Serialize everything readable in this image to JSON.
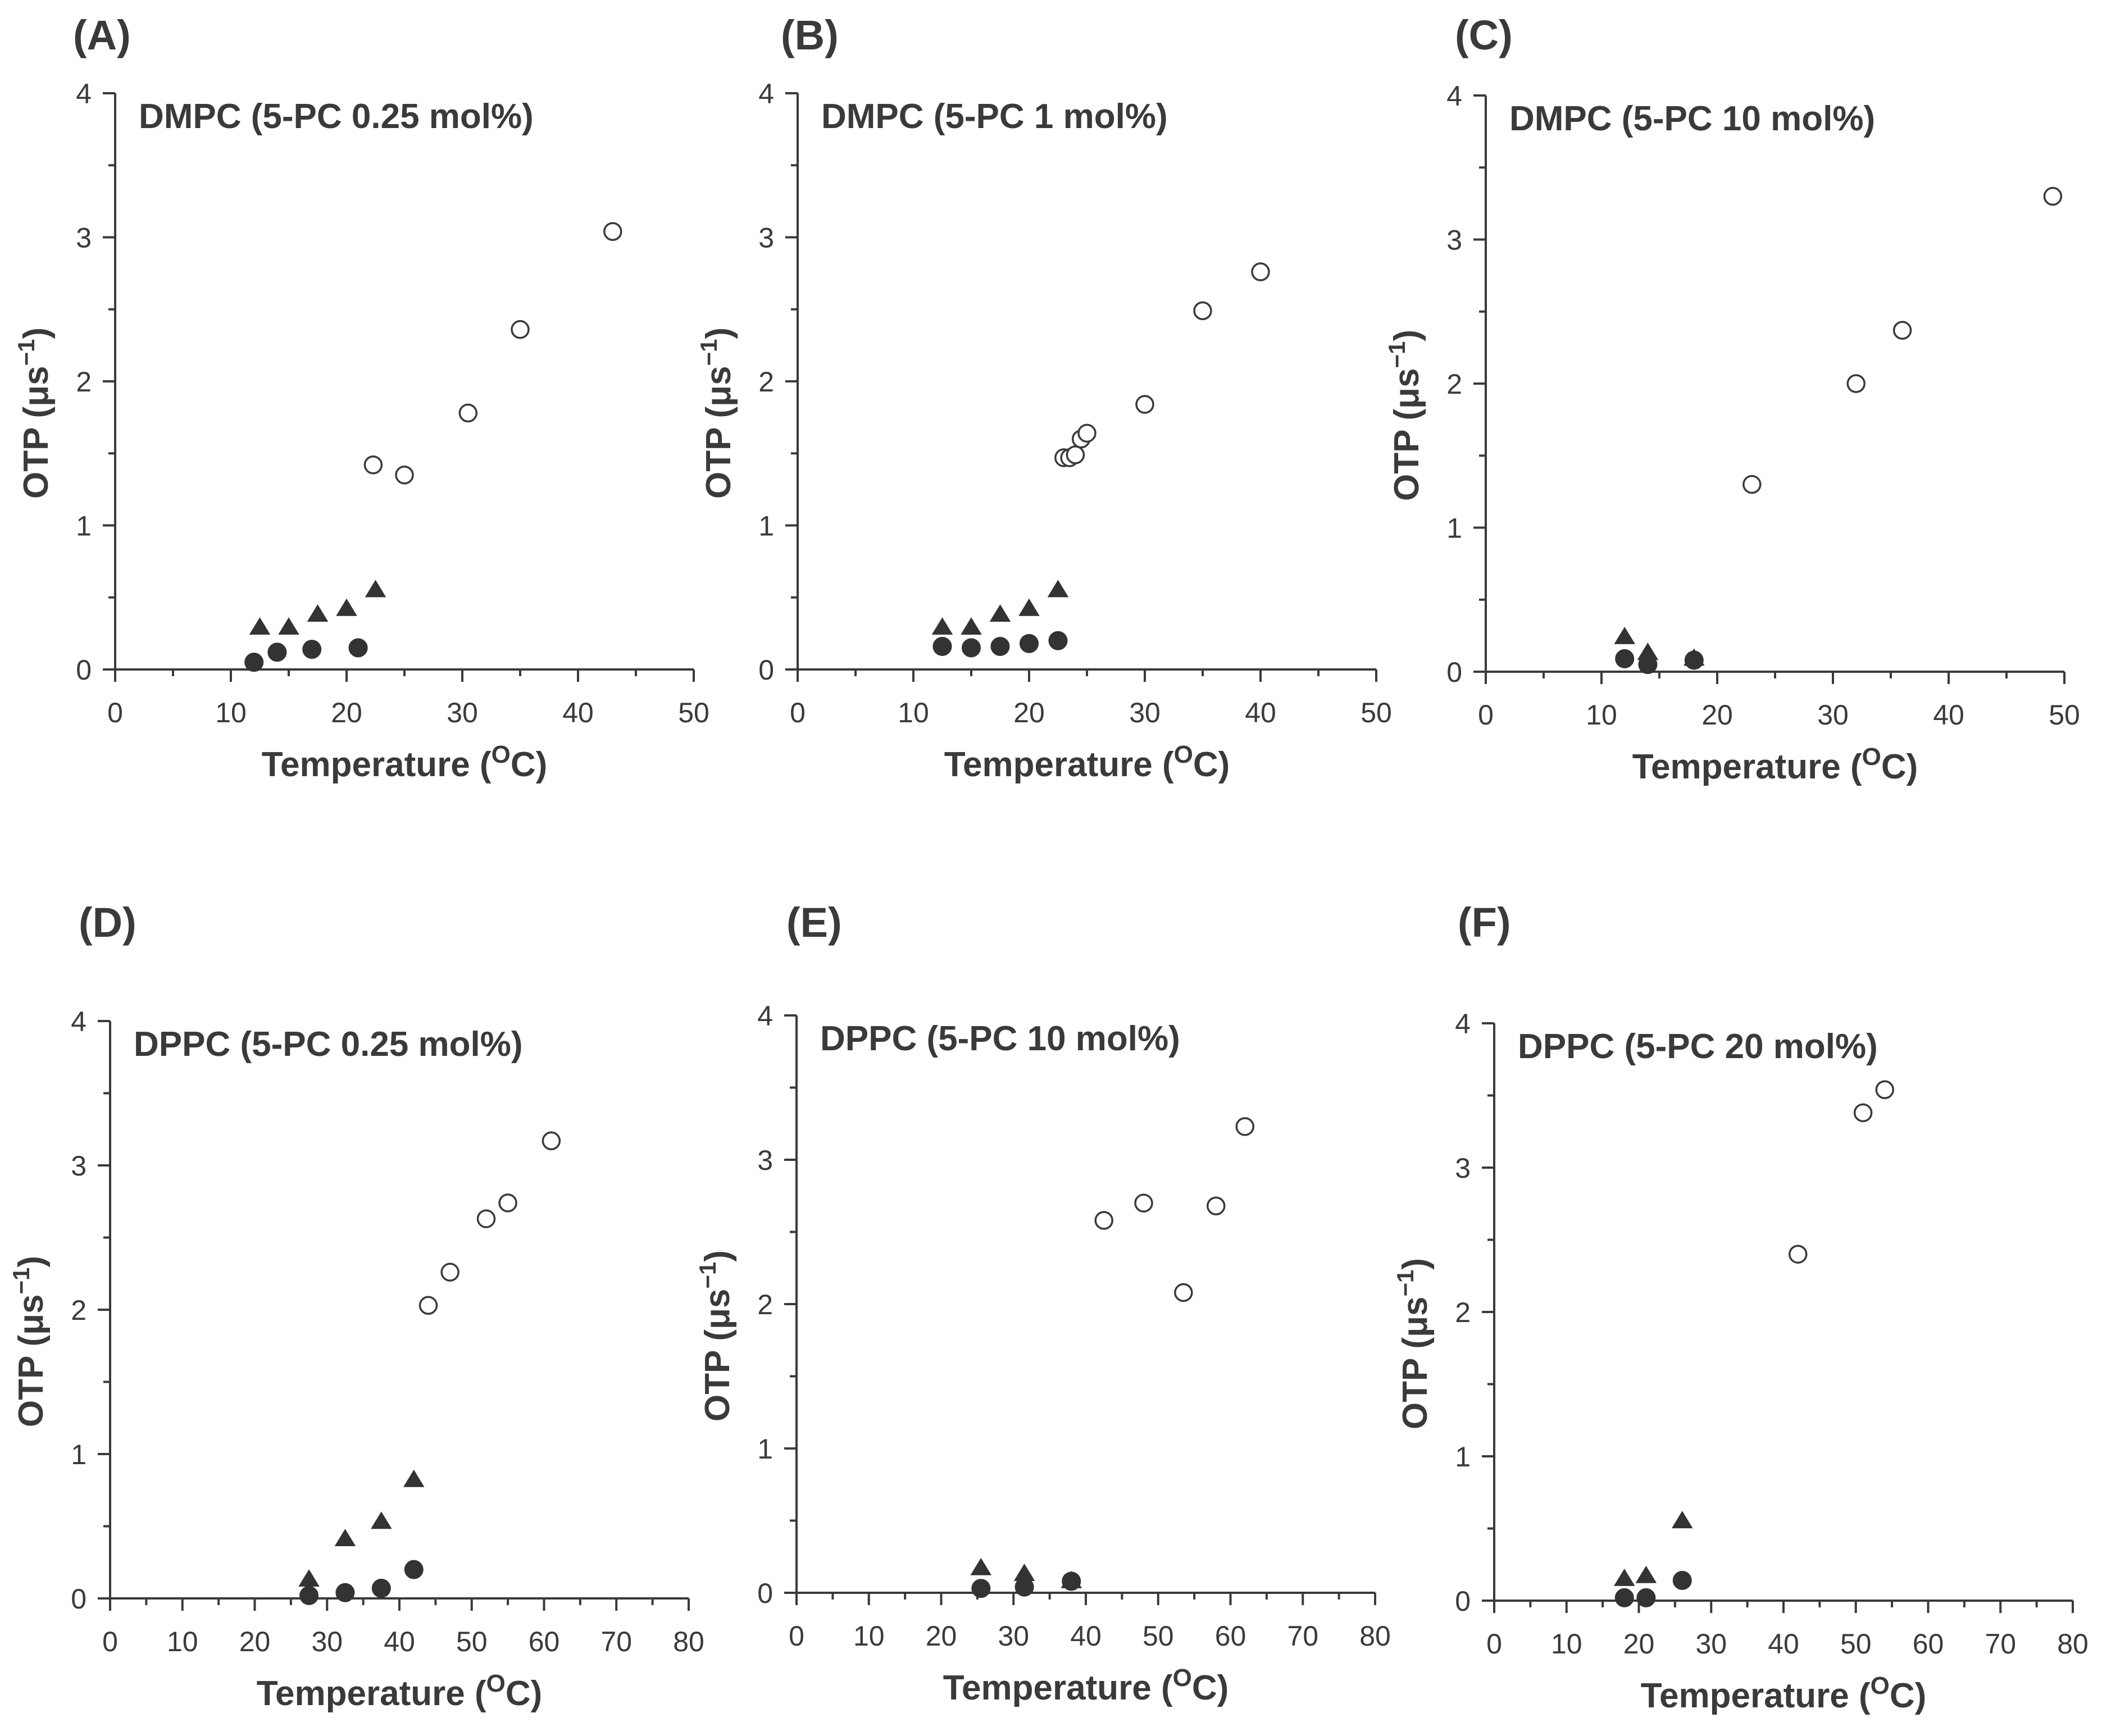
{
  "chart_data": [
    {
      "type": "scatter",
      "panel_label": "(A)",
      "title": "DMPC (5-PC 0.25 mol%)",
      "xlabel": "Temperature (",
      "xlabel_sup": "O",
      "xlabel_tail": "C)",
      "ylabel": "OTP  (μs",
      "ylabel_sup": "−1",
      "ylabel_tail": ")",
      "xlim": [
        0,
        50
      ],
      "ylim": [
        0,
        4
      ],
      "xticks": [
        "0",
        "10",
        "20",
        "30",
        "40",
        "50"
      ],
      "yticks": [
        "0",
        "1",
        "2",
        "3",
        "4"
      ],
      "grid": false,
      "series": [
        {
          "marker": "open-circle",
          "points": [
            [
              22.3,
              1.42
            ],
            [
              25,
              1.35
            ],
            [
              30.5,
              1.78
            ],
            [
              35,
              2.36
            ],
            [
              43,
              3.04
            ]
          ]
        },
        {
          "marker": "filled-triangle",
          "points": [
            [
              12.5,
              0.3
            ],
            [
              15,
              0.3
            ],
            [
              17.5,
              0.39
            ],
            [
              20,
              0.43
            ],
            [
              22.5,
              0.56
            ]
          ]
        },
        {
          "marker": "filled-circle",
          "points": [
            [
              12,
              0.05
            ],
            [
              14,
              0.12
            ],
            [
              17,
              0.14
            ],
            [
              21,
              0.15
            ]
          ]
        }
      ]
    },
    {
      "type": "scatter",
      "panel_label": "(B)",
      "title": "DMPC (5-PC 1 mol%)",
      "xlabel": "Temperature (",
      "xlabel_sup": "O",
      "xlabel_tail": "C)",
      "ylabel": "OTP  (μs",
      "ylabel_sup": "−1",
      "ylabel_tail": ")",
      "xlim": [
        0,
        50
      ],
      "ylim": [
        0,
        4
      ],
      "xticks": [
        "0",
        "10",
        "20",
        "30",
        "40",
        "50"
      ],
      "yticks": [
        "0",
        "1",
        "2",
        "3",
        "4"
      ],
      "grid": false,
      "series": [
        {
          "marker": "open-circle",
          "points": [
            [
              23,
              1.47
            ],
            [
              23.5,
              1.47
            ],
            [
              24,
              1.49
            ],
            [
              24.5,
              1.6
            ],
            [
              25,
              1.64
            ],
            [
              30,
              1.84
            ],
            [
              35,
              2.49
            ],
            [
              40,
              2.76
            ]
          ]
        },
        {
          "marker": "filled-triangle",
          "points": [
            [
              12.5,
              0.3
            ],
            [
              15,
              0.3
            ],
            [
              17.5,
              0.39
            ],
            [
              20,
              0.43
            ],
            [
              22.5,
              0.56
            ]
          ]
        },
        {
          "marker": "filled-circle",
          "points": [
            [
              12.5,
              0.16
            ],
            [
              15,
              0.15
            ],
            [
              17.5,
              0.16
            ],
            [
              20,
              0.18
            ],
            [
              22.5,
              0.2
            ]
          ]
        }
      ]
    },
    {
      "type": "scatter",
      "panel_label": "(C)",
      "title": "DMPC (5-PC 10 mol%)",
      "xlabel": "Temperature (",
      "xlabel_sup": "O",
      "xlabel_tail": "C)",
      "ylabel": "OTP  (μs",
      "ylabel_sup": "−1",
      "ylabel_tail": ")",
      "xlim": [
        0,
        50
      ],
      "ylim": [
        0,
        4
      ],
      "xticks": [
        "0",
        "10",
        "20",
        "30",
        "40",
        "50"
      ],
      "yticks": [
        "0",
        "1",
        "2",
        "3",
        "4"
      ],
      "grid": false,
      "series": [
        {
          "marker": "open-circle",
          "points": [
            [
              23,
              1.3
            ],
            [
              32,
              2.0
            ],
            [
              36,
              2.37
            ],
            [
              49,
              3.3
            ]
          ]
        },
        {
          "marker": "filled-triangle",
          "points": [
            [
              12,
              0.25
            ],
            [
              14,
              0.14
            ],
            [
              18,
              0.1
            ]
          ]
        },
        {
          "marker": "filled-circle",
          "points": [
            [
              12,
              0.09
            ],
            [
              14,
              0.05
            ],
            [
              18,
              0.08
            ]
          ]
        }
      ]
    },
    {
      "type": "scatter",
      "panel_label": "(D)",
      "title": "DPPC (5-PC 0.25 mol%)",
      "xlabel": "Temperature (",
      "xlabel_sup": "O",
      "xlabel_tail": "C)",
      "ylabel": "OTP  (μs",
      "ylabel_sup": "−1",
      "ylabel_tail": ")",
      "xlim": [
        0,
        80
      ],
      "ylim": [
        0,
        4
      ],
      "xticks": [
        "0",
        "10",
        "20",
        "30",
        "40",
        "50",
        "60",
        "70",
        "80"
      ],
      "yticks": [
        "0",
        "1",
        "2",
        "3",
        "4"
      ],
      "grid": false,
      "series": [
        {
          "marker": "open-circle",
          "points": [
            [
              44,
              2.03
            ],
            [
              47,
              2.26
            ],
            [
              52,
              2.63
            ],
            [
              55,
              2.74
            ],
            [
              61,
              3.17
            ]
          ]
        },
        {
          "marker": "filled-triangle",
          "points": [
            [
              27.5,
              0.14
            ],
            [
              32.5,
              0.42
            ],
            [
              37.5,
              0.54
            ],
            [
              42,
              0.83
            ]
          ]
        },
        {
          "marker": "filled-circle",
          "points": [
            [
              27.5,
              0.02
            ],
            [
              32.5,
              0.04
            ],
            [
              37.5,
              0.07
            ],
            [
              42,
              0.2
            ]
          ]
        }
      ]
    },
    {
      "type": "scatter",
      "panel_label": "(E)",
      "title": "DPPC (5-PC 10 mol%)",
      "xlabel": "Temperature (",
      "xlabel_sup": "O",
      "xlabel_tail": "C)",
      "ylabel": "OTP  (μs",
      "ylabel_sup": "−1",
      "ylabel_tail": ")",
      "xlim": [
        0,
        80
      ],
      "ylim": [
        0,
        4
      ],
      "xticks": [
        "0",
        "10",
        "20",
        "30",
        "40",
        "50",
        "60",
        "70",
        "80"
      ],
      "yticks": [
        "0",
        "1",
        "2",
        "3",
        "4"
      ],
      "grid": false,
      "series": [
        {
          "marker": "open-circle",
          "points": [
            [
              42.5,
              2.58
            ],
            [
              48,
              2.7
            ],
            [
              53.5,
              2.08
            ],
            [
              58,
              2.68
            ],
            [
              62,
              3.23
            ]
          ]
        },
        {
          "marker": "filled-triangle",
          "points": [
            [
              25.5,
              0.18
            ],
            [
              31.5,
              0.14
            ],
            [
              38,
              0.09
            ]
          ]
        },
        {
          "marker": "filled-circle",
          "points": [
            [
              25.5,
              0.03
            ],
            [
              31.5,
              0.04
            ],
            [
              38,
              0.08
            ]
          ]
        }
      ]
    },
    {
      "type": "scatter",
      "panel_label": "(F)",
      "title": "DPPC (5-PC 20 mol%)",
      "xlabel": "Temperature (",
      "xlabel_sup": "O",
      "xlabel_tail": "C)",
      "ylabel": "OTP  (μs",
      "ylabel_sup": "−1",
      "ylabel_tail": ")",
      "xlim": [
        0,
        80
      ],
      "ylim": [
        0,
        4
      ],
      "xticks": [
        "0",
        "10",
        "20",
        "30",
        "40",
        "50",
        "60",
        "70",
        "80"
      ],
      "yticks": [
        "0",
        "1",
        "2",
        "3",
        "4"
      ],
      "grid": false,
      "series": [
        {
          "marker": "open-circle",
          "points": [
            [
              42,
              2.4
            ],
            [
              51,
              3.38
            ],
            [
              54,
              3.54
            ]
          ]
        },
        {
          "marker": "filled-triangle",
          "points": [
            [
              18,
              0.16
            ],
            [
              21,
              0.18
            ],
            [
              26,
              0.56
            ]
          ]
        },
        {
          "marker": "filled-circle",
          "points": [
            [
              18,
              0.02
            ],
            [
              21,
              0.02
            ],
            [
              26,
              0.14
            ]
          ]
        }
      ]
    }
  ]
}
